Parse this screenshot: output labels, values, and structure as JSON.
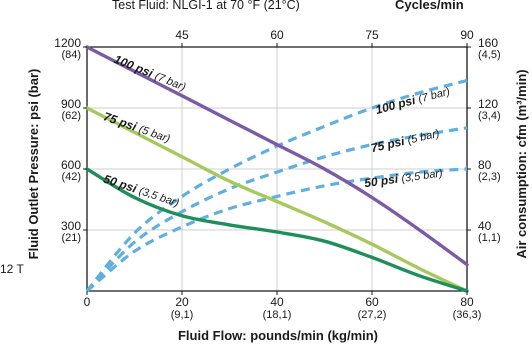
{
  "page": {
    "top_left_text": "Test Fluid: NLGI-1 at 70 °F (21°C)",
    "top_right_text": "Cycles/min",
    "left_edge_text": "12 T"
  },
  "chart_data": {
    "type": "line",
    "xlabel": "Fluid Flow: pounds/min (kg/min)",
    "ylabel_left": "Fluid Outlet Pressure: psi (bar)",
    "ylabel_right": "Air consumption: cfm (m³/min)",
    "xlim": [
      0,
      80
    ],
    "ylim_left": [
      0,
      1200
    ],
    "ylim_right": [
      0,
      160
    ],
    "cycles_xlim": [
      30,
      90
    ],
    "x_ticks": [
      {
        "value": 0,
        "main": "0",
        "sub": ""
      },
      {
        "value": 20,
        "main": "20",
        "sub": "(9,1)"
      },
      {
        "value": 40,
        "main": "40",
        "sub": "(18,1)"
      },
      {
        "value": 60,
        "main": "60",
        "sub": "(27,2)"
      },
      {
        "value": 80,
        "main": "80",
        "sub": "(36,3)"
      }
    ],
    "y_left_ticks": [
      {
        "value": 1200,
        "main": "1200",
        "sub": "(84)"
      },
      {
        "value": 900,
        "main": "900",
        "sub": "(62)"
      },
      {
        "value": 600,
        "main": "600",
        "sub": "(42)"
      },
      {
        "value": 300,
        "main": "300",
        "sub": "(21)"
      }
    ],
    "y_right_ticks": [
      {
        "value": 160,
        "main": "160",
        "sub": "(4,5)"
      },
      {
        "value": 120,
        "main": "120",
        "sub": "(3,4)"
      },
      {
        "value": 80,
        "main": "80",
        "sub": "(2,3)"
      },
      {
        "value": 40,
        "main": "40",
        "sub": "(1,1)"
      }
    ],
    "cycles_ticks": [
      {
        "value": 45,
        "label": "45"
      },
      {
        "value": 60,
        "label": "60"
      },
      {
        "value": 75,
        "label": "75"
      },
      {
        "value": 90,
        "label": "90"
      }
    ],
    "pressure_series": [
      {
        "name_bold": "100 psi",
        "name_sub": "(7 bar)",
        "color": "#7b5aa6",
        "x": [
          0,
          10,
          20,
          30,
          40,
          50,
          60,
          70,
          80
        ],
        "y": [
          1200,
          1080,
          960,
          840,
          720,
          600,
          460,
          300,
          130
        ]
      },
      {
        "name_bold": "75 psi",
        "name_sub": "(5 bar)",
        "color": "#a6c95e",
        "x": [
          0,
          10,
          20,
          30,
          40,
          50,
          60,
          70,
          80
        ],
        "y": [
          900,
          780,
          660,
          540,
          440,
          340,
          230,
          110,
          0
        ]
      },
      {
        "name_bold": "50 psi",
        "name_sub": "(3,5 bar)",
        "color": "#1e8f5a",
        "x": [
          0,
          10,
          20,
          30,
          40,
          50,
          60,
          70,
          80
        ],
        "y": [
          600,
          460,
          370,
          325,
          290,
          245,
          165,
          75,
          0
        ]
      }
    ],
    "air_series": [
      {
        "name_bold": "100 psi",
        "name_sub": "(7 bar)",
        "color": "#5fb0df",
        "x": [
          0,
          10,
          20,
          30,
          40,
          50,
          60,
          70,
          80
        ],
        "y": [
          0,
          38,
          62,
          80,
          95,
          108,
          120,
          130,
          138
        ]
      },
      {
        "name_bold": "75 psi",
        "name_sub": "(5 bar)",
        "color": "#5fb0df",
        "x": [
          0,
          10,
          20,
          30,
          40,
          50,
          60,
          70,
          80
        ],
        "y": [
          0,
          32,
          52,
          67,
          78,
          88,
          96,
          102,
          107
        ]
      },
      {
        "name_bold": "50 psi",
        "name_sub": "(3,5 bar)",
        "color": "#5fb0df",
        "x": [
          0,
          10,
          20,
          30,
          40,
          50,
          60,
          70,
          80
        ],
        "y": [
          0,
          26,
          42,
          54,
          62,
          69,
          74,
          78,
          80
        ]
      }
    ]
  }
}
